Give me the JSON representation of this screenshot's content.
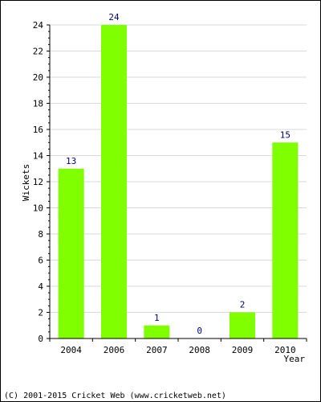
{
  "chart_data": {
    "type": "bar",
    "categories": [
      "2004",
      "2006",
      "2007",
      "2008",
      "2009",
      "2010"
    ],
    "values": [
      13,
      24,
      1,
      0,
      2,
      15
    ],
    "xlabel": "Year",
    "ylabel": "Wickets",
    "ylim": [
      0,
      24
    ],
    "yticks": [
      0,
      2,
      4,
      6,
      8,
      10,
      12,
      14,
      16,
      18,
      20,
      22,
      24
    ],
    "grid": true,
    "data_labels": true,
    "colors": {
      "bar": "#7fff00",
      "data_label": "#000080",
      "grid": "#d9d9d9",
      "axis": "#000000"
    }
  },
  "footer": {
    "copyright": "(C) 2001-2015 Cricket Web (www.cricketweb.net)"
  }
}
